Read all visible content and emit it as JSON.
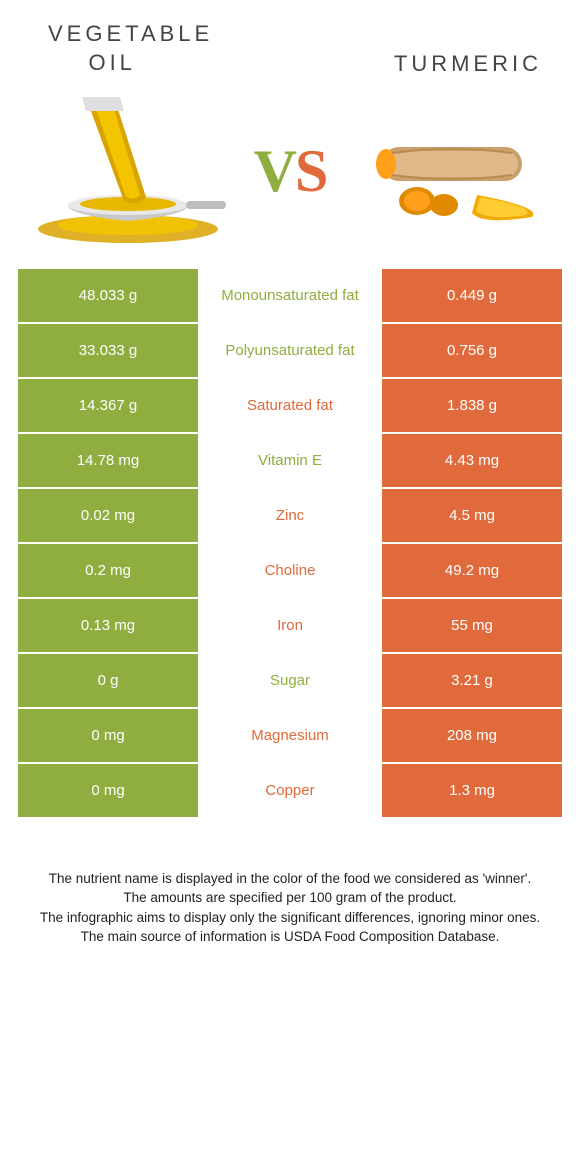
{
  "colors": {
    "left": "#8fae3f",
    "right": "#e06a3b",
    "left_text": "#8fae3f",
    "right_text": "#e06a3b",
    "cell_text": "#ffffff",
    "body_text": "#222222"
  },
  "header": {
    "left_line1": "VEGETABLE",
    "left_line2": "OIL",
    "right": "TURMERIC",
    "vs_v": "V",
    "vs_s": "S"
  },
  "rows": [
    {
      "left": "48.033 g",
      "label": "Monounsaturated fat",
      "right": "0.449 g",
      "winner": "left"
    },
    {
      "left": "33.033 g",
      "label": "Polyunsaturated fat",
      "right": "0.756 g",
      "winner": "left"
    },
    {
      "left": "14.367 g",
      "label": "Saturated fat",
      "right": "1.838 g",
      "winner": "right"
    },
    {
      "left": "14.78 mg",
      "label": "Vitamin E",
      "right": "4.43 mg",
      "winner": "left"
    },
    {
      "left": "0.02 mg",
      "label": "Zinc",
      "right": "4.5 mg",
      "winner": "right"
    },
    {
      "left": "0.2 mg",
      "label": "Choline",
      "right": "49.2 mg",
      "winner": "right"
    },
    {
      "left": "0.13 mg",
      "label": "Iron",
      "right": "55 mg",
      "winner": "right"
    },
    {
      "left": "0 g",
      "label": "Sugar",
      "right": "3.21 g",
      "winner": "left"
    },
    {
      "left": "0 mg",
      "label": "Magnesium",
      "right": "208 mg",
      "winner": "right"
    },
    {
      "left": "0 mg",
      "label": "Copper",
      "right": "1.3 mg",
      "winner": "right"
    }
  ],
  "footer": {
    "l1": "The nutrient name is displayed in the color of the food we considered as 'winner'.",
    "l2": "The amounts are specified per 100 gram of the product.",
    "l3": "The infographic aims to display only the significant differences, ignoring minor ones.",
    "l4": "The main source of information is USDA Food Composition Database."
  }
}
